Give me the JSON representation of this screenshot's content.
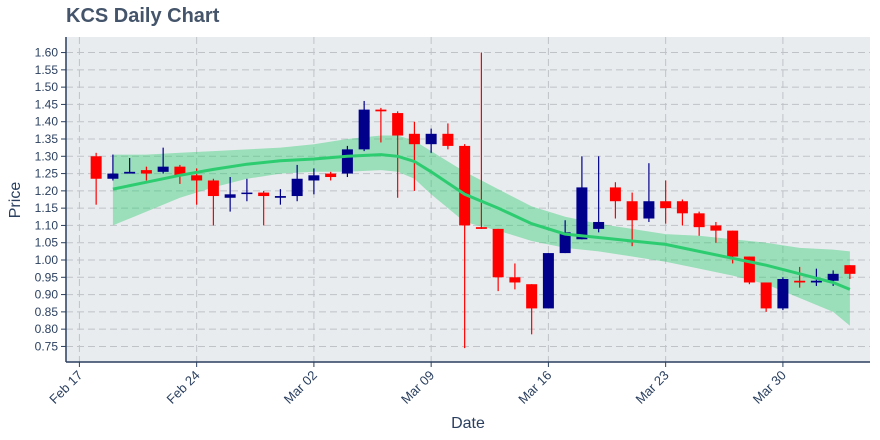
{
  "title": "KCS Daily Chart",
  "chart_data": {
    "type": "candlestick",
    "title": "KCS Daily Chart",
    "xlabel": "Date",
    "ylabel": "Price",
    "x_ticks": [
      "Feb 17",
      "Feb 24",
      "Mar 02",
      "Mar 09",
      "Mar 16",
      "Mar 23",
      "Mar 30"
    ],
    "y_ticks": [
      "0.75",
      "0.80",
      "0.85",
      "0.90",
      "0.95",
      "1.00",
      "1.05",
      "1.10",
      "1.15",
      "1.20",
      "1.25",
      "1.30",
      "1.35",
      "1.40",
      "1.45",
      "1.50",
      "1.55",
      "1.60"
    ],
    "xlim_day": [
      16.2,
      64.2
    ],
    "ylim": [
      0.705,
      1.645
    ],
    "grid": true,
    "colors": {
      "up": "#00008b",
      "down": "#ff0000",
      "trend_line": "#2ecc71",
      "band": "#2ecc71",
      "plot_bg": "#e9ecef",
      "axis": "#2a3f5f"
    },
    "candles": [
      {
        "date": "Feb 18",
        "open": 1.3,
        "high": 1.31,
        "low": 1.16,
        "close": 1.235
      },
      {
        "date": "Feb 19",
        "open": 1.235,
        "high": 1.305,
        "low": 1.23,
        "close": 1.25
      },
      {
        "date": "Feb 20",
        "open": 1.25,
        "high": 1.295,
        "low": 1.25,
        "close": 1.255
      },
      {
        "date": "Feb 21",
        "open": 1.26,
        "high": 1.27,
        "low": 1.23,
        "close": 1.25
      },
      {
        "date": "Feb 22",
        "open": 1.255,
        "high": 1.325,
        "low": 1.25,
        "close": 1.27
      },
      {
        "date": "Feb 23",
        "open": 1.27,
        "high": 1.275,
        "low": 1.22,
        "close": 1.245
      },
      {
        "date": "Feb 24",
        "open": 1.245,
        "high": 1.265,
        "low": 1.16,
        "close": 1.23
      },
      {
        "date": "Feb 25",
        "open": 1.23,
        "high": 1.235,
        "low": 1.1,
        "close": 1.185
      },
      {
        "date": "Feb 26",
        "open": 1.18,
        "high": 1.24,
        "low": 1.14,
        "close": 1.19
      },
      {
        "date": "Feb 27",
        "open": 1.195,
        "high": 1.235,
        "low": 1.17,
        "close": 1.195
      },
      {
        "date": "Feb 28",
        "open": 1.195,
        "high": 1.2,
        "low": 1.1,
        "close": 1.185
      },
      {
        "date": "Feb 29",
        "open": 1.18,
        "high": 1.205,
        "low": 1.16,
        "close": 1.185
      },
      {
        "date": "Mar 01",
        "open": 1.185,
        "high": 1.275,
        "low": 1.17,
        "close": 1.235
      },
      {
        "date": "Mar 02",
        "open": 1.23,
        "high": 1.265,
        "low": 1.19,
        "close": 1.245
      },
      {
        "date": "Mar 03",
        "open": 1.25,
        "high": 1.255,
        "low": 1.23,
        "close": 1.24
      },
      {
        "date": "Mar 04",
        "open": 1.25,
        "high": 1.33,
        "low": 1.24,
        "close": 1.32
      },
      {
        "date": "Mar 05",
        "open": 1.32,
        "high": 1.46,
        "low": 1.315,
        "close": 1.435
      },
      {
        "date": "Mar 06",
        "open": 1.435,
        "high": 1.44,
        "low": 1.34,
        "close": 1.43
      },
      {
        "date": "Mar 07",
        "open": 1.425,
        "high": 1.43,
        "low": 1.18,
        "close": 1.36
      },
      {
        "date": "Mar 08",
        "open": 1.365,
        "high": 1.4,
        "low": 1.2,
        "close": 1.335
      },
      {
        "date": "Mar 09",
        "open": 1.335,
        "high": 1.38,
        "low": 1.31,
        "close": 1.365
      },
      {
        "date": "Mar 10",
        "open": 1.365,
        "high": 1.395,
        "low": 1.32,
        "close": 1.33
      },
      {
        "date": "Mar 11",
        "open": 1.33,
        "high": 1.335,
        "low": 0.745,
        "close": 1.1
      },
      {
        "date": "Mar 12",
        "open": 1.095,
        "high": 1.6,
        "low": 1.09,
        "close": 1.09
      },
      {
        "date": "Mar 13",
        "open": 1.09,
        "high": 1.09,
        "low": 0.91,
        "close": 0.95
      },
      {
        "date": "Mar 14",
        "open": 0.95,
        "high": 0.99,
        "low": 0.915,
        "close": 0.935
      },
      {
        "date": "Mar 15",
        "open": 0.93,
        "high": 0.93,
        "low": 0.785,
        "close": 0.86
      },
      {
        "date": "Mar 16",
        "open": 0.86,
        "high": 1.02,
        "low": 0.86,
        "close": 1.02
      },
      {
        "date": "Mar 17",
        "open": 1.02,
        "high": 1.115,
        "low": 1.02,
        "close": 1.08
      },
      {
        "date": "Mar 18",
        "open": 1.06,
        "high": 1.3,
        "low": 1.06,
        "close": 1.21
      },
      {
        "date": "Mar 19",
        "open": 1.09,
        "high": 1.3,
        "low": 1.08,
        "close": 1.11
      },
      {
        "date": "Mar 20",
        "open": 1.21,
        "high": 1.225,
        "low": 1.12,
        "close": 1.17
      },
      {
        "date": "Mar 21",
        "open": 1.17,
        "high": 1.195,
        "low": 1.04,
        "close": 1.115
      },
      {
        "date": "Mar 22",
        "open": 1.12,
        "high": 1.28,
        "low": 1.11,
        "close": 1.17
      },
      {
        "date": "Mar 23",
        "open": 1.17,
        "high": 1.23,
        "low": 1.105,
        "close": 1.15
      },
      {
        "date": "Mar 24",
        "open": 1.17,
        "high": 1.175,
        "low": 1.1,
        "close": 1.135
      },
      {
        "date": "Mar 25",
        "open": 1.135,
        "high": 1.14,
        "low": 1.07,
        "close": 1.095
      },
      {
        "date": "Mar 26",
        "open": 1.1,
        "high": 1.11,
        "low": 1.05,
        "close": 1.085
      },
      {
        "date": "Mar 27",
        "open": 1.085,
        "high": 1.085,
        "low": 0.99,
        "close": 1.01
      },
      {
        "date": "Mar 28",
        "open": 1.01,
        "high": 1.01,
        "low": 0.93,
        "close": 0.935
      },
      {
        "date": "Mar 29",
        "open": 0.935,
        "high": 0.935,
        "low": 0.85,
        "close": 0.86
      },
      {
        "date": "Mar 30",
        "open": 0.86,
        "high": 0.95,
        "low": 0.855,
        "close": 0.945
      },
      {
        "date": "Mar 31",
        "open": 0.94,
        "high": 0.98,
        "low": 0.92,
        "close": 0.935
      },
      {
        "date": "Apr 01",
        "open": 0.935,
        "high": 0.975,
        "low": 0.925,
        "close": 0.94
      },
      {
        "date": "Apr 02",
        "open": 0.94,
        "high": 0.97,
        "low": 0.925,
        "close": 0.96
      },
      {
        "date": "Apr 03",
        "open": 0.985,
        "high": 0.985,
        "low": 0.945,
        "close": 0.96
      }
    ],
    "trend": [
      {
        "day": 19,
        "mid": 1.205,
        "lo": 1.1,
        "hi": 1.305
      },
      {
        "day": 21,
        "mid": 1.225,
        "lo": 1.14,
        "hi": 1.305
      },
      {
        "day": 23,
        "mid": 1.245,
        "lo": 1.18,
        "hi": 1.31
      },
      {
        "day": 25,
        "mid": 1.262,
        "lo": 1.21,
        "hi": 1.315
      },
      {
        "day": 27,
        "mid": 1.277,
        "lo": 1.235,
        "hi": 1.32
      },
      {
        "day": 29,
        "mid": 1.287,
        "lo": 1.25,
        "hi": 1.325
      },
      {
        "day": 31,
        "mid": 1.292,
        "lo": 1.255,
        "hi": 1.335
      },
      {
        "day": 33,
        "mid": 1.3,
        "lo": 1.255,
        "hi": 1.35
      },
      {
        "day": 35,
        "mid": 1.305,
        "lo": 1.26,
        "hi": 1.36
      },
      {
        "day": 36,
        "mid": 1.3,
        "lo": 1.255,
        "hi": 1.36
      },
      {
        "day": 37,
        "mid": 1.285,
        "lo": 1.235,
        "hi": 1.345
      },
      {
        "day": 38,
        "mid": 1.255,
        "lo": 1.19,
        "hi": 1.315
      },
      {
        "day": 40,
        "mid": 1.19,
        "lo": 1.11,
        "hi": 1.255
      },
      {
        "day": 42,
        "mid": 1.15,
        "lo": 1.085,
        "hi": 1.205
      },
      {
        "day": 44,
        "mid": 1.105,
        "lo": 1.055,
        "hi": 1.155
      },
      {
        "day": 46,
        "mid": 1.075,
        "lo": 1.035,
        "hi": 1.125
      },
      {
        "day": 48,
        "mid": 1.065,
        "lo": 1.025,
        "hi": 1.105
      },
      {
        "day": 50,
        "mid": 1.055,
        "lo": 1.01,
        "hi": 1.09
      },
      {
        "day": 52,
        "mid": 1.045,
        "lo": 0.995,
        "hi": 1.075
      },
      {
        "day": 54,
        "mid": 1.025,
        "lo": 0.975,
        "hi": 1.07
      },
      {
        "day": 56,
        "mid": 1.005,
        "lo": 0.955,
        "hi": 1.06
      },
      {
        "day": 58,
        "mid": 0.985,
        "lo": 0.93,
        "hi": 1.05
      },
      {
        "day": 60,
        "mid": 0.96,
        "lo": 0.89,
        "hi": 1.035
      },
      {
        "day": 62,
        "mid": 0.935,
        "lo": 0.85,
        "hi": 1.03
      },
      {
        "day": 63,
        "mid": 0.915,
        "lo": 0.81,
        "hi": 1.025
      }
    ]
  }
}
